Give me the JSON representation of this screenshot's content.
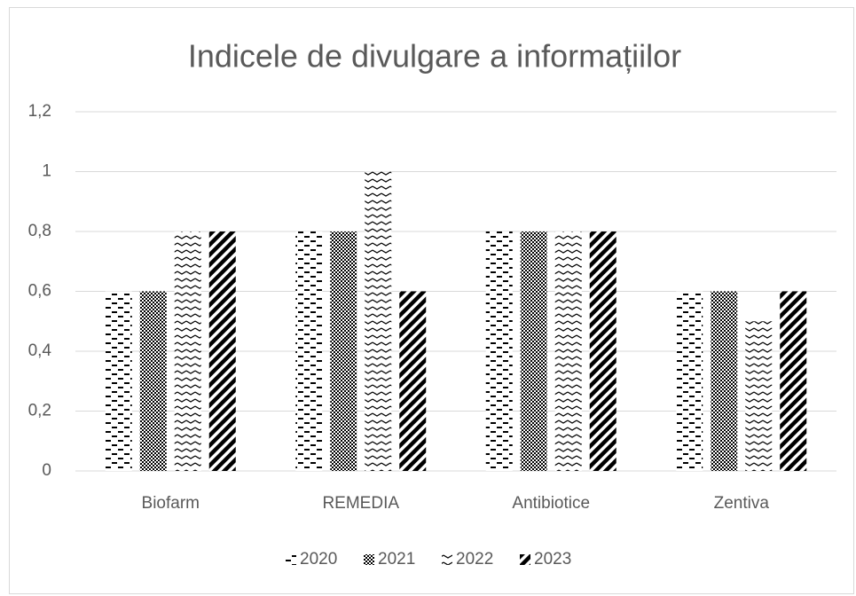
{
  "chart_data": {
    "type": "bar",
    "title": "Indicele de divulgare a informațiilor",
    "categories": [
      "Biofarm",
      "REMEDIA",
      "Antibiotice",
      "Zentiva"
    ],
    "series": [
      {
        "name": "2020",
        "color": "#000000",
        "pattern": "dashes",
        "values": [
          0.6,
          0.8,
          0.8,
          0.6
        ]
      },
      {
        "name": "2021",
        "color": "#000000",
        "pattern": "checks",
        "values": [
          0.6,
          0.8,
          0.8,
          0.6
        ]
      },
      {
        "name": "2022",
        "color": "#000000",
        "pattern": "waves",
        "values": [
          0.8,
          1,
          0.8,
          0.5
        ]
      },
      {
        "name": "2023",
        "color": "#000000",
        "pattern": "diagonal",
        "values": [
          0.8,
          0.6,
          0.8,
          0.6
        ]
      }
    ],
    "ylim": [
      0,
      1.2
    ],
    "yticks": [
      0,
      {
        "value": 0.2,
        "label": "0,2"
      },
      {
        "value": 0.4,
        "label": "0,4"
      },
      {
        "value": 0.6,
        "label": "0,6"
      },
      {
        "value": 0.8,
        "label": "0,8"
      },
      1,
      {
        "value": 1.2,
        "label": "1,2"
      }
    ],
    "grid": true,
    "legend": "bottom"
  }
}
